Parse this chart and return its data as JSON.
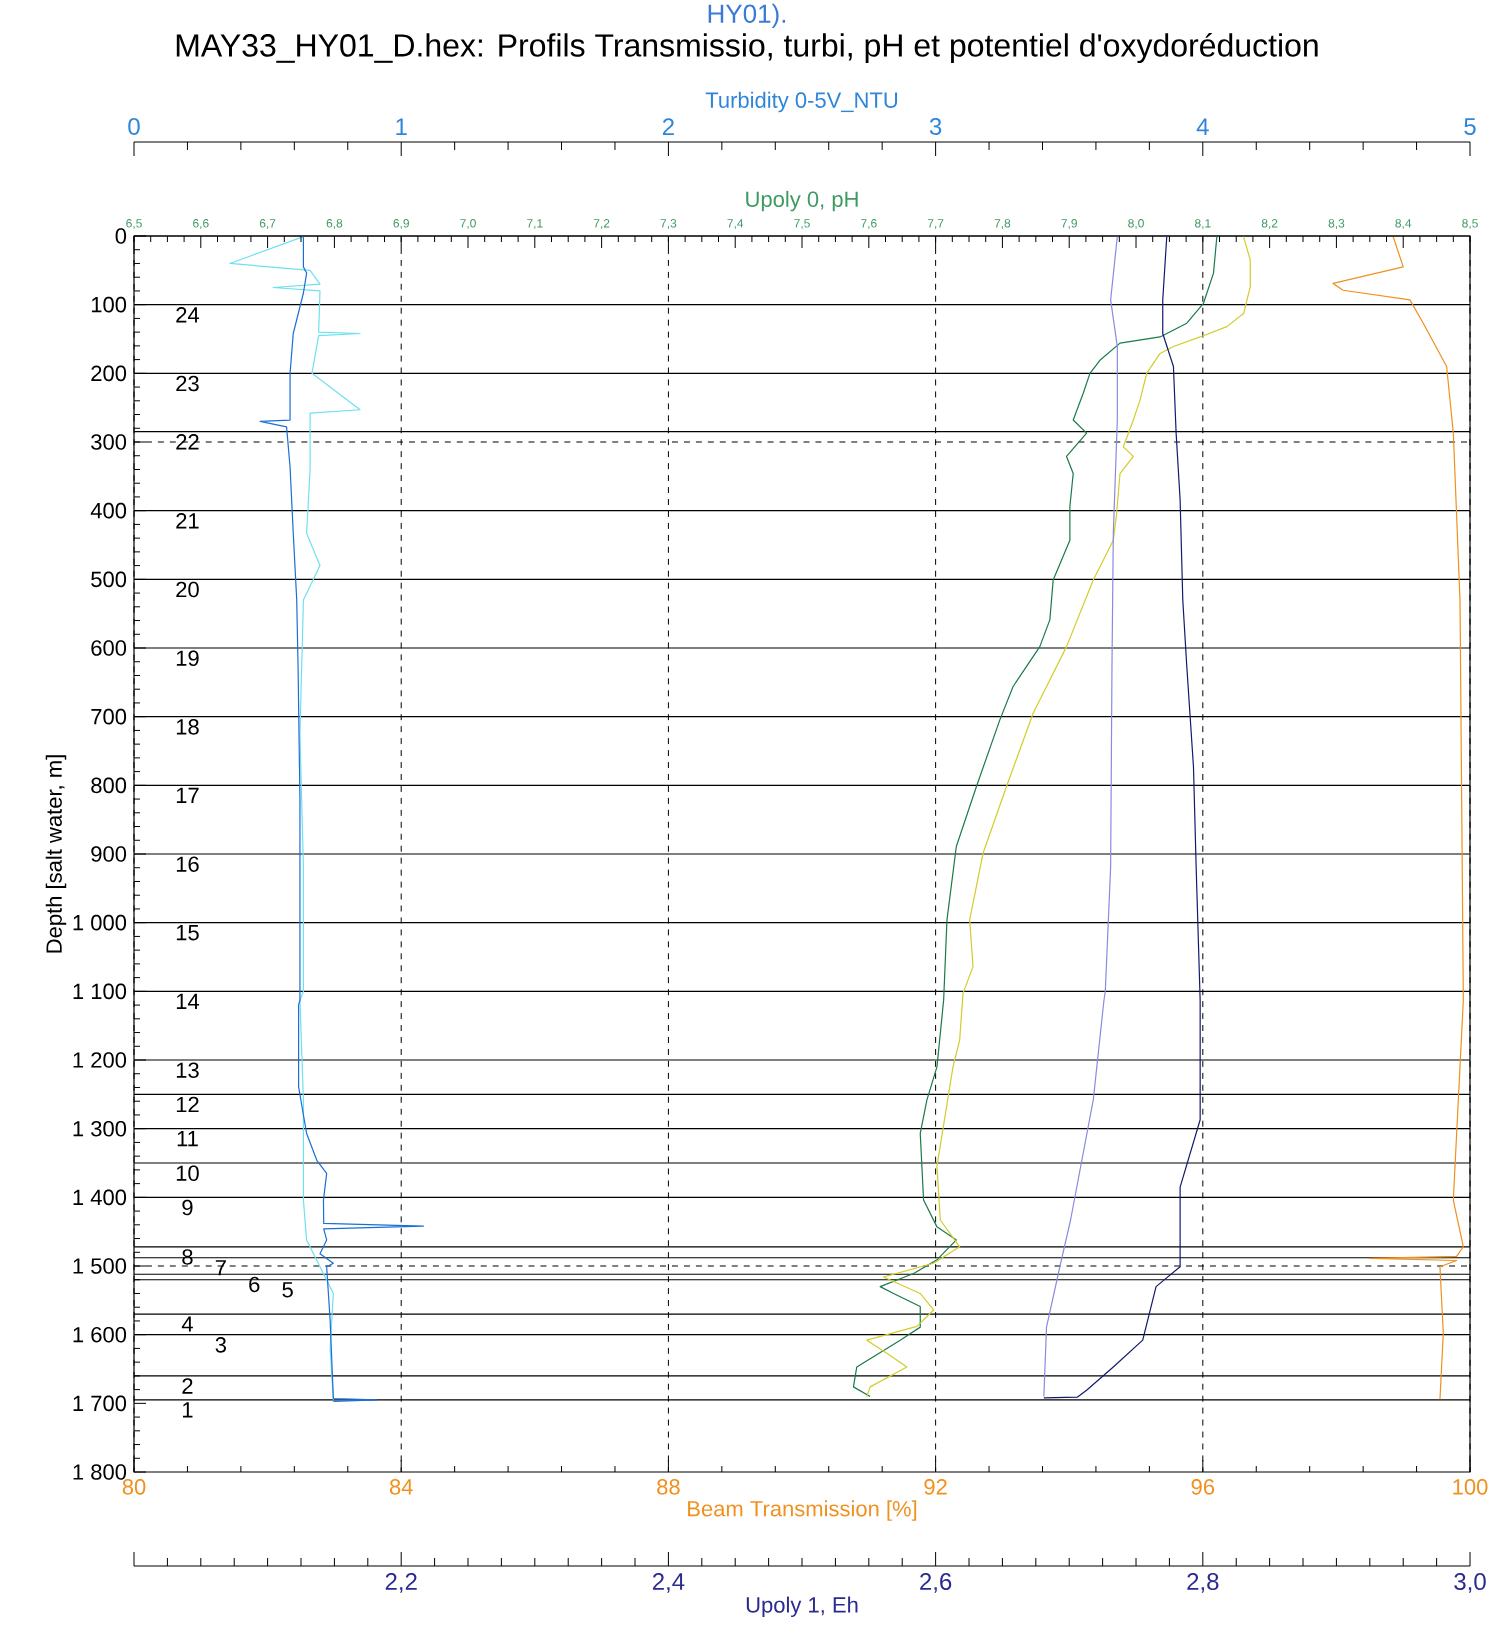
{
  "chart_data": [
    {
      "type": "line",
      "title": "MAY33_HY01_D.hex: Profils Transmissio, turbi, pH et potentiel d'oxydoréduction",
      "annotations": [
        "HY01).",
        {
          "text": "24",
          "x": 80.8,
          "y": 100
        },
        {
          "text": "23",
          "x": 80.8,
          "y": 200
        },
        {
          "text": "22",
          "x": 80.8,
          "y": 285
        },
        {
          "text": "21",
          "x": 80.8,
          "y": 400
        },
        {
          "text": "20",
          "x": 80.8,
          "y": 500
        },
        {
          "text": "19",
          "x": 80.8,
          "y": 600
        },
        {
          "text": "18",
          "x": 80.8,
          "y": 700
        },
        {
          "text": "17",
          "x": 80.8,
          "y": 800
        },
        {
          "text": "16",
          "x": 80.8,
          "y": 900
        },
        {
          "text": "15",
          "x": 80.8,
          "y": 1000
        },
        {
          "text": "14",
          "x": 80.8,
          "y": 1100
        },
        {
          "text": "13",
          "x": 80.8,
          "y": 1200
        },
        {
          "text": "12",
          "x": 80.8,
          "y": 1250
        },
        {
          "text": "11",
          "x": 80.8,
          "y": 1300
        },
        {
          "text": "10",
          "x": 80.8,
          "y": 1350
        },
        {
          "text": "9",
          "x": 80.8,
          "y": 1400
        },
        {
          "text": "8",
          "x": 80.8,
          "y": 1472
        },
        {
          "text": "7",
          "x": 81.3,
          "y": 1488
        },
        {
          "text": "6",
          "x": 81.8,
          "y": 1512
        },
        {
          "text": "5",
          "x": 82.3,
          "y": 1520
        },
        {
          "text": "4",
          "x": 80.8,
          "y": 1570
        },
        {
          "text": "3",
          "x": 81.3,
          "y": 1600
        },
        {
          "text": "2",
          "x": 80.8,
          "y": 1660
        },
        {
          "text": "1",
          "x": 80.8,
          "y": 1695
        }
      ],
      "xlabel": "Beam Transmission [%]",
      "x2label": "Turbidity 0-5V_NTU",
      "ylabel": "Depth [salt water, m]",
      "xlim": [
        80,
        100
      ],
      "xticks": [
        80,
        84,
        88,
        92,
        96,
        100
      ],
      "x2lim": [
        0,
        5
      ],
      "x2ticks": [
        0,
        1,
        2,
        3,
        4,
        5
      ],
      "ylim": [
        1800,
        0
      ],
      "yticks": [
        0,
        100,
        200,
        300,
        400,
        500,
        600,
        700,
        800,
        900,
        {
          "value": 1000,
          "label": "1 000"
        },
        {
          "value": 1100,
          "label": "1 100"
        },
        {
          "value": 1200,
          "label": "1 200"
        },
        {
          "value": 1300,
          "label": "1 300"
        },
        {
          "value": 1400,
          "label": "1 400"
        },
        {
          "value": 1500,
          "label": "1 500"
        },
        {
          "value": 1600,
          "label": "1 600"
        },
        {
          "value": 1700,
          "label": "1 700"
        },
        {
          "value": 1800,
          "label": "1 800"
        }
      ],
      "grid": "x",
      "series": [
        {
          "color": "#6fe0ee",
          "axis": "x2",
          "x": [
            0.634,
            0.359,
            0.659,
            0.696,
            0.521,
            0.696,
            0.691,
            0.846,
            0.691,
            0.666,
            0.846,
            0.659,
            0.659,
            0.646,
            0.696,
            0.634,
            0.621,
            0.634,
            0.634,
            0.621,
            0.634,
            0.634,
            0.646,
            0.746,
            0.734,
            0.746
          ],
          "values": [
            1,
            40,
            50,
            70,
            75,
            80,
            140,
            142,
            145,
            200,
            253,
            258,
            340,
            433,
            480,
            530,
            725,
            919,
            1100,
            1113,
            1258,
            1404,
            1462,
            1540,
            1620,
            1695
          ]
        },
        {
          "color": "#1a6fd6",
          "axis": "x2",
          "x": [
            0.634,
            0.634,
            0.646,
            0.634,
            0.596,
            0.584,
            0.584,
            0.472,
            0.571,
            0.584,
            0.596,
            0.609,
            0.614,
            0.621,
            0.621,
            0.616,
            0.616,
            0.646,
            0.684,
            0.721,
            0.709,
            0.71,
            1.083,
            0.71,
            0.721,
            0.696,
            0.746,
            0.721,
            0.734,
            0.746,
            0.908,
            0.746
          ],
          "values": [
            1,
            45,
            54,
            83,
            142,
            200,
            268,
            270,
            278,
            336,
            433,
            530,
            627,
            821,
            1113,
            1120,
            1239,
            1307,
            1346,
            1365,
            1404,
            1438,
            1442,
            1446,
            1462,
            1482,
            1496,
            1501,
            1579,
            1693,
            1695,
            1697
          ]
        },
        {
          "color": "#f0901e",
          "x": [
            98.85,
            99.0,
            97.95,
            98.1,
            99.1,
            99.3,
            99.65,
            99.75,
            99.85,
            99.9,
            99.75,
            99.9,
            99.8,
            98.5,
            99.8,
            99.55,
            99.6,
            99.55
          ],
          "values": [
            1,
            45,
            69,
            79,
            93,
            127,
            190,
            287,
            530,
            1113,
            1404,
            1472,
            1486,
            1489,
            1492,
            1501,
            1598,
            1694
          ]
        }
      ],
      "ref_lines": [
        {
          "axis": "y",
          "value": 100
        },
        {
          "axis": "y",
          "value": 200
        },
        {
          "axis": "y",
          "value": 285
        },
        {
          "axis": "y",
          "value": 300,
          "line_style": "dashed"
        },
        {
          "axis": "y",
          "value": 400
        },
        {
          "axis": "y",
          "value": 500
        },
        {
          "axis": "y",
          "value": 600
        },
        {
          "axis": "y",
          "value": 700
        },
        {
          "axis": "y",
          "value": 800
        },
        {
          "axis": "y",
          "value": 900
        },
        {
          "axis": "y",
          "value": 1000
        },
        {
          "axis": "y",
          "value": 1100
        },
        {
          "axis": "y",
          "value": 1200
        },
        {
          "axis": "y",
          "value": 1250
        },
        {
          "axis": "y",
          "value": 1300
        },
        {
          "axis": "y",
          "value": 1350
        },
        {
          "axis": "y",
          "value": 1400
        },
        {
          "axis": "y",
          "value": 1472
        },
        {
          "axis": "y",
          "value": 1488
        },
        {
          "axis": "y",
          "value": 1500,
          "line_style": "dashed"
        },
        {
          "axis": "y",
          "value": 1512
        },
        {
          "axis": "y",
          "value": 1520
        },
        {
          "axis": "y",
          "value": 1570
        },
        {
          "axis": "y",
          "value": 1600
        },
        {
          "axis": "y",
          "value": 1660
        },
        {
          "axis": "y",
          "value": 1695
        }
      ]
    },
    {
      "type": "line",
      "xlabel": "Upoly 1, Eh",
      "x2label": "Upoly 0, pH",
      "xlim": [
        2.0,
        3.0
      ],
      "xticks": [
        {
          "value": 2.0,
          "label": null
        },
        {
          "value": 2.2,
          "label": "2,2"
        },
        {
          "value": 2.4,
          "label": "2,4"
        },
        {
          "value": 2.6,
          "label": "2,6"
        },
        {
          "value": 2.8,
          "label": "2,8"
        },
        {
          "value": 3.0,
          "label": "3,0"
        }
      ],
      "x2lim": [
        6.5,
        8.5
      ],
      "x2ticks": [
        {
          "value": 6.5,
          "label": "6,5"
        },
        {
          "value": 6.6,
          "label": "6,6"
        },
        {
          "value": 6.7,
          "label": "6,7"
        },
        {
          "value": 6.8,
          "label": "6,8"
        },
        {
          "value": 6.9,
          "label": "6,9"
        },
        {
          "value": 7.0,
          "label": "7,0"
        },
        {
          "value": 7.1,
          "label": "7,1"
        },
        {
          "value": 7.2,
          "label": "7,2"
        },
        {
          "value": 7.3,
          "label": "7,3"
        },
        {
          "value": 7.4,
          "label": "7,4"
        },
        {
          "value": 7.5,
          "label": "7,5"
        },
        {
          "value": 7.6,
          "label": "7,6"
        },
        {
          "value": 7.7,
          "label": "7,7"
        },
        {
          "value": 7.8,
          "label": "7,8"
        },
        {
          "value": 7.9,
          "label": "7,9"
        },
        {
          "value": 8.0,
          "label": "8,0"
        },
        {
          "value": 8.1,
          "label": "8,1"
        },
        {
          "value": 8.2,
          "label": "8,2"
        },
        {
          "value": 8.3,
          "label": "8,3"
        },
        {
          "value": 8.4,
          "label": "8,4"
        },
        {
          "value": 8.5,
          "label": "8,5"
        }
      ],
      "ylim": [
        1800,
        0
      ],
      "tick_labels": "x",
      "series": [
        {
          "color": "#1a7a4a",
          "axis": "x2",
          "x": [
            8.121,
            8.116,
            8.101,
            8.076,
            8.036,
            7.976,
            7.946,
            7.931,
            7.921,
            7.906,
            7.926,
            7.896,
            7.906,
            7.901,
            7.901,
            7.876,
            7.871,
            7.856,
            7.816,
            7.796,
            7.761,
            7.731,
            7.717,
            7.712,
            7.702,
            7.687,
            7.677,
            7.682,
            7.702,
            7.731,
            7.702,
            7.667,
            7.617,
            7.637,
            7.677,
            7.677,
            7.647,
            7.582,
            7.577,
            7.602
          ],
          "values": [
            1,
            54,
            98,
            127,
            147,
            156,
            181,
            200,
            229,
            268,
            287,
            321,
            346,
            394,
            443,
            501,
            559,
            598,
            656,
            705,
            802,
            889,
            996,
            1113,
            1210,
            1258,
            1307,
            1404,
            1443,
            1462,
            1491,
            1511,
            1530,
            1540,
            1559,
            1589,
            1608,
            1647,
            1676,
            1690
          ]
        },
        {
          "color": "#d4cc2a",
          "axis": "x2",
          "x": [
            8.161,
            8.171,
            8.171,
            8.161,
            8.136,
            8.096,
            8.056,
            8.036,
            8.016,
            8.006,
            7.996,
            7.981,
            7.996,
            7.976,
            7.971,
            7.966,
            7.936,
            7.896,
            7.846,
            7.806,
            7.771,
            7.751,
            7.756,
            7.741,
            7.736,
            7.726,
            7.702,
            7.707,
            7.736,
            7.697,
            7.622,
            7.677,
            7.697,
            7.672,
            7.597,
            7.627,
            7.657,
            7.602,
            7.597
          ],
          "values": [
            1,
            35,
            74,
            113,
            132,
            147,
            161,
            171,
            200,
            239,
            268,
            307,
            321,
            346,
            404,
            443,
            501,
            598,
            695,
            802,
            899,
            996,
            1064,
            1103,
            1171,
            1210,
            1355,
            1433,
            1472,
            1496,
            1516,
            1540,
            1564,
            1588,
            1608,
            1627,
            1647,
            1676,
            1690
          ]
        },
        {
          "color": "#8a8ae0",
          "x": [
            2.736,
            2.731,
            2.736,
            2.736,
            2.733,
            2.732,
            2.731,
            2.727,
            2.726,
            2.718,
            2.701,
            2.693,
            2.683,
            2.681
          ],
          "values": [
            1,
            93,
            161,
            268,
            433,
            627,
            919,
            1100,
            1113,
            1258,
            1433,
            1501,
            1589,
            1690
          ]
        },
        {
          "color": "#141a6a",
          "x": [
            2.773,
            2.77,
            2.77,
            2.778,
            2.78,
            2.783,
            2.785,
            2.788,
            2.793,
            2.795,
            2.798,
            2.798,
            2.783,
            2.783,
            2.765,
            2.76,
            2.755,
            2.733,
            2.713,
            2.706,
            2.681
          ],
          "values": [
            1,
            93,
            142,
            190,
            287,
            384,
            530,
            627,
            773,
            919,
            1113,
            1287,
            1385,
            1501,
            1530,
            1569,
            1608,
            1647,
            1681,
            1691,
            1692
          ]
        }
      ]
    }
  ]
}
